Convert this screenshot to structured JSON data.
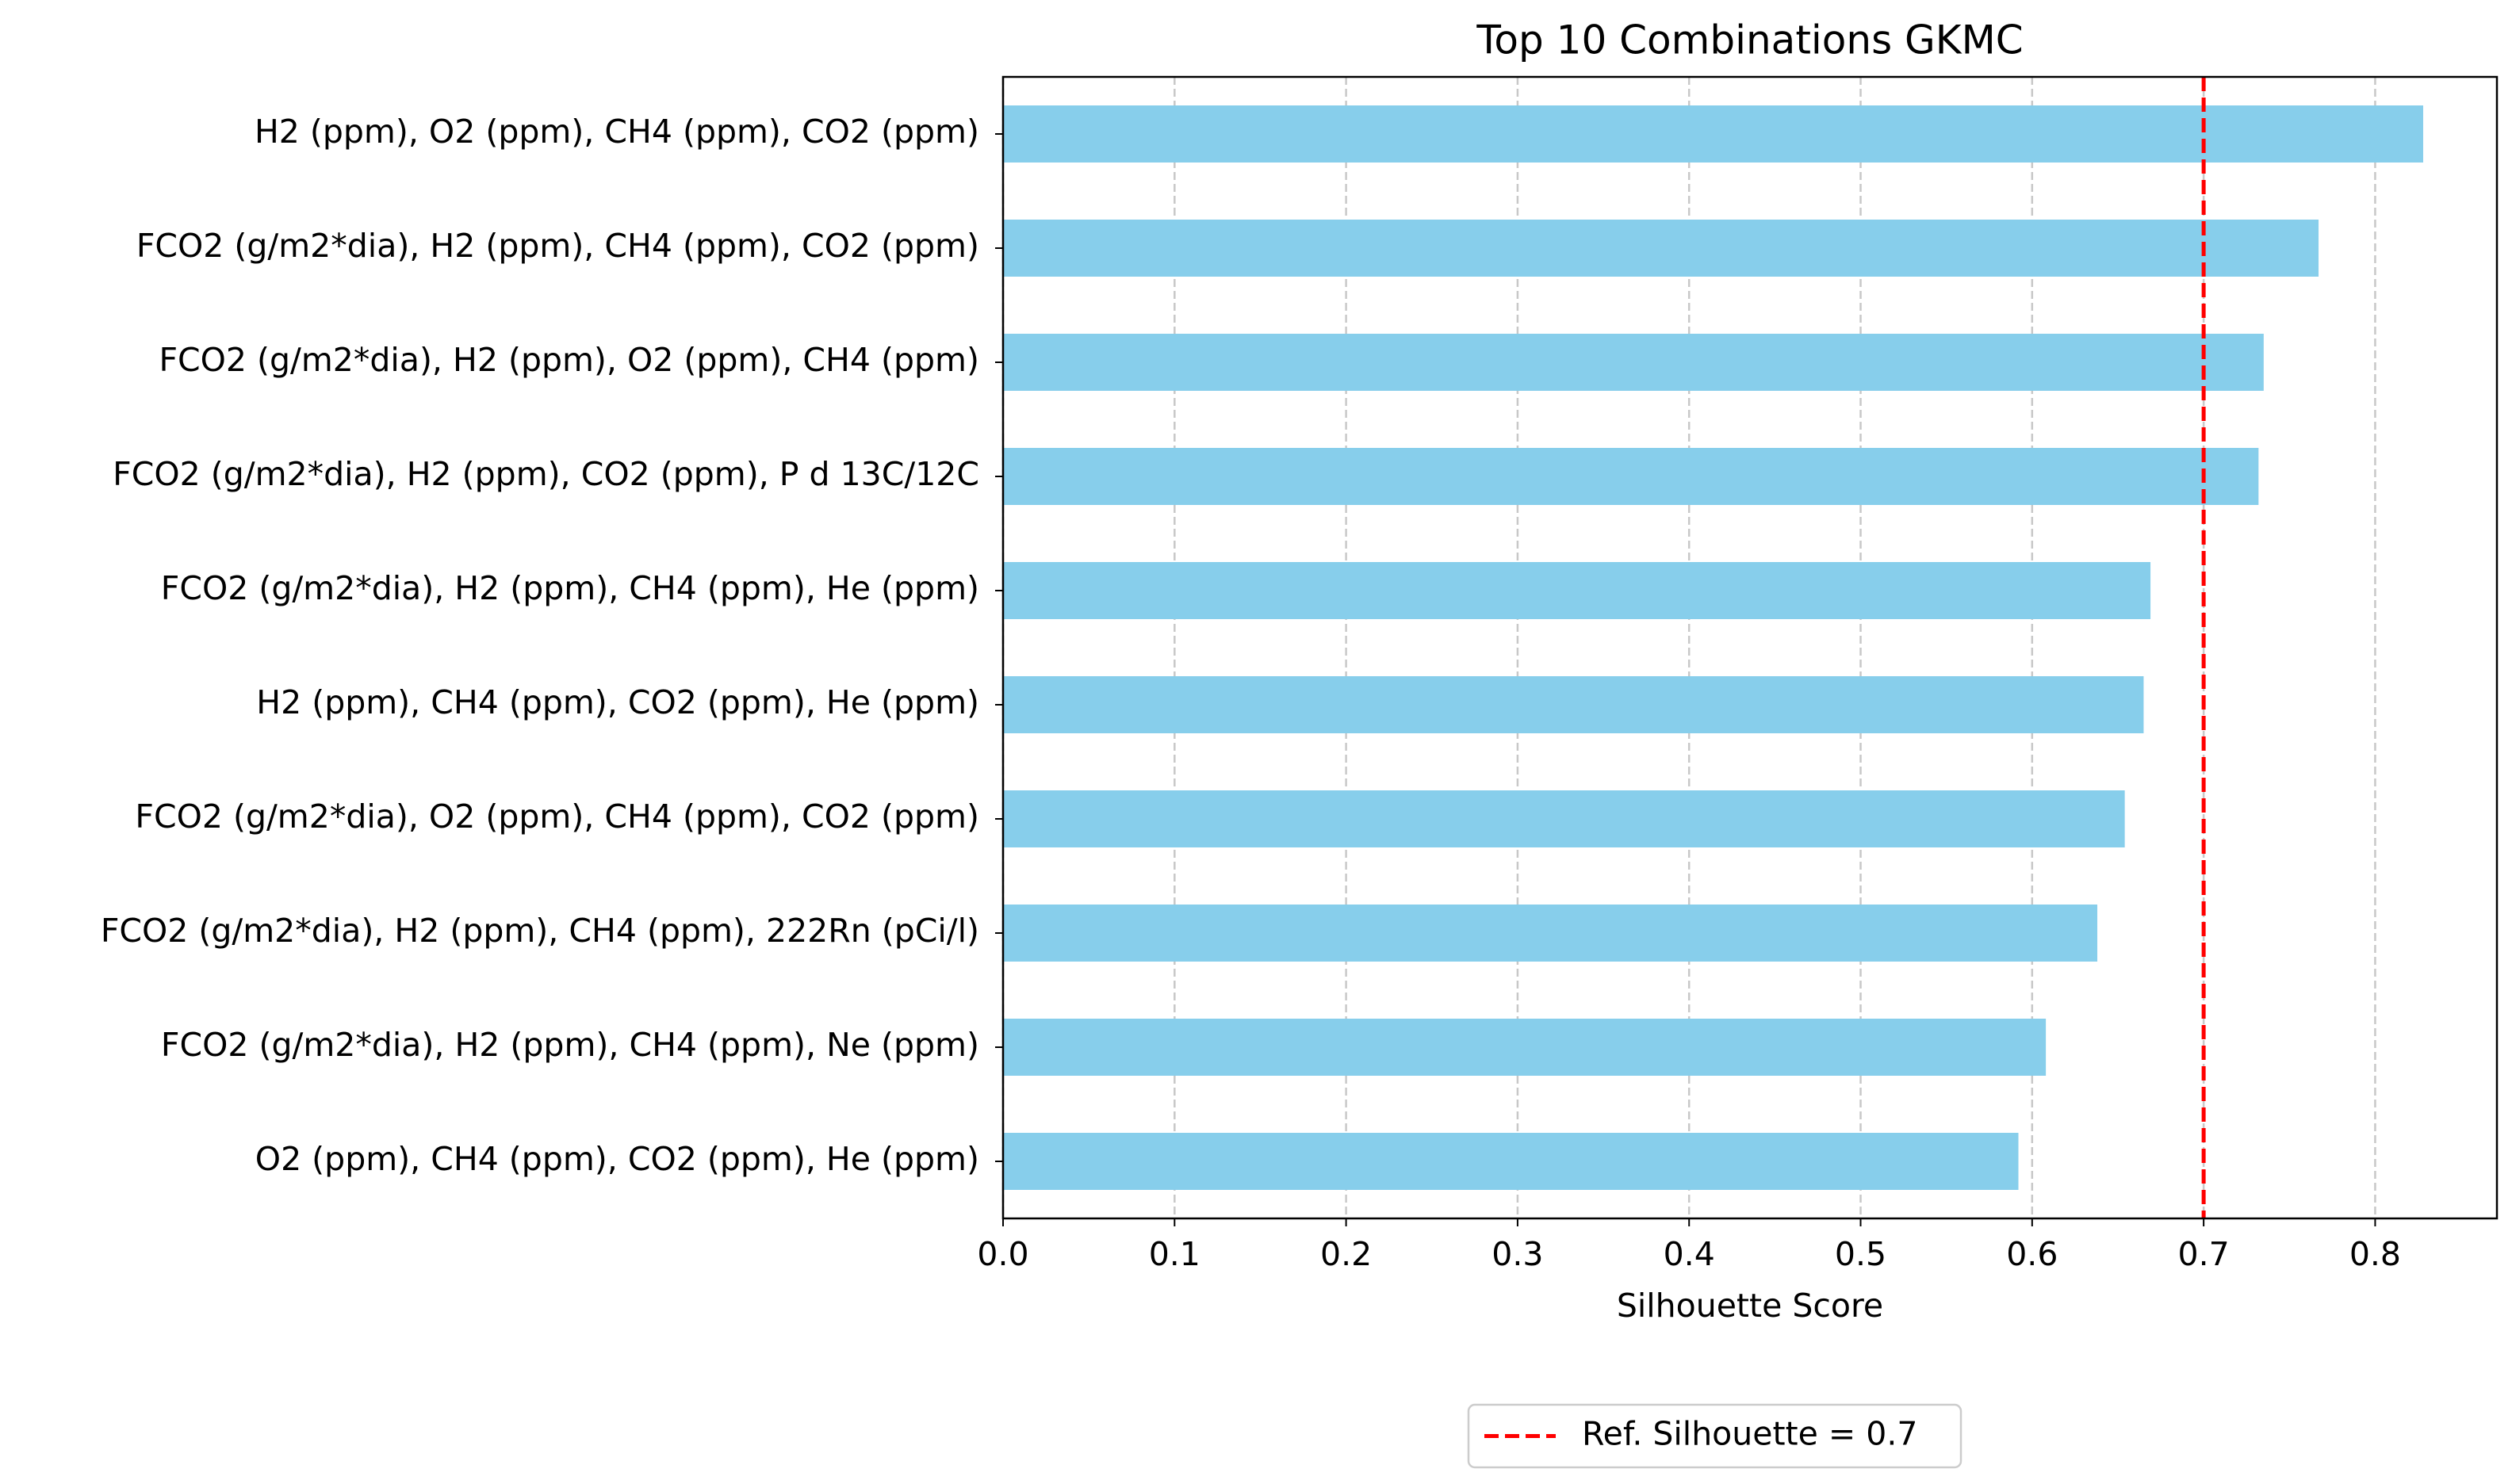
{
  "chart_data": {
    "type": "barh",
    "title": "Top 10 Combinations GKMC",
    "x_label": "Silhouette Score",
    "categories": [
      "H2 (ppm), O2 (ppm), CH4 (ppm), CO2 (ppm)",
      "FCO2 (g/m2*dia), H2 (ppm), CH4 (ppm), CO2 (ppm)",
      "FCO2 (g/m2*dia), H2 (ppm), O2 (ppm), CH4 (ppm)",
      "FCO2 (g/m2*dia), H2 (ppm), CO2 (ppm), P d 13C/12C",
      "FCO2 (g/m2*dia), H2 (ppm), CH4 (ppm), He (ppm)",
      "H2 (ppm), CH4 (ppm), CO2 (ppm), He (ppm)",
      "FCO2 (g/m2*dia), O2 (ppm), CH4 (ppm), CO2 (ppm)",
      "FCO2 (g/m2*dia), H2 (ppm), CH4 (ppm), 222Rn (pCi/l)",
      "FCO2 (g/m2*dia), H2 (ppm), CH4 (ppm), Ne (ppm)",
      "O2 (ppm), CH4 (ppm), CO2 (ppm), He (ppm)"
    ],
    "values": [
      0.828,
      0.767,
      0.735,
      0.732,
      0.669,
      0.665,
      0.654,
      0.638,
      0.608,
      0.592
    ],
    "color": "#87ceeb",
    "xlim": [
      0,
      0.871
    ],
    "xticks": [
      {
        "value": 0,
        "label": "0.0"
      },
      0.1,
      0.2,
      0.3,
      0.4,
      0.5,
      0.6,
      0.7,
      0.8
    ],
    "grid": true,
    "reference_line": {
      "value": 0.7,
      "color": "#ff0000",
      "label": "Ref. Silhouette = 0.7"
    },
    "legend": "bottom"
  }
}
